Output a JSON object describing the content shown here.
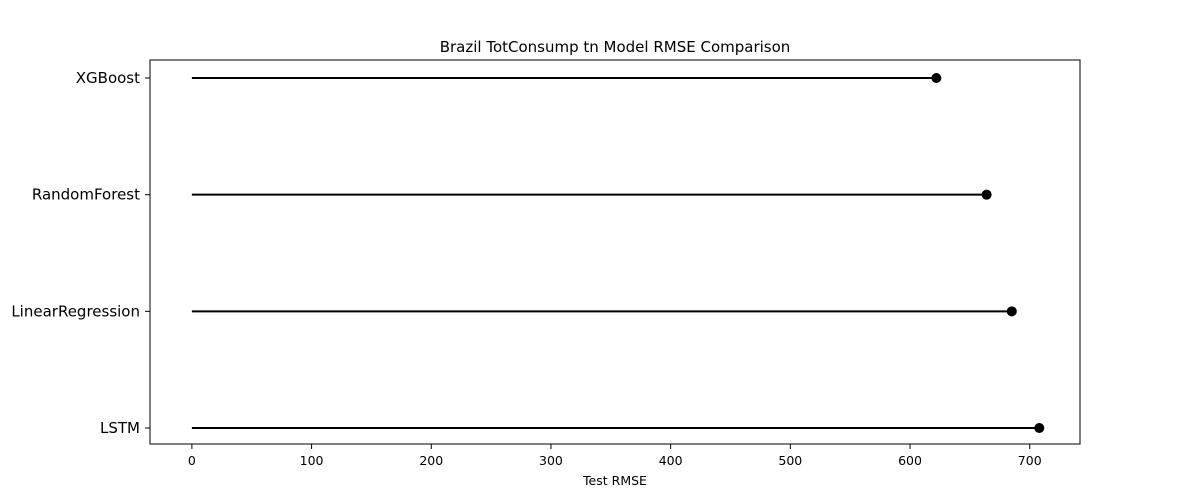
{
  "chart_data": {
    "type": "lollipop",
    "title": "Brazil TotConsump tn Model RMSE Comparison",
    "xlabel": "Test RMSE",
    "ylabel": "",
    "categories": [
      "LSTM",
      "LinearRegression",
      "RandomForest",
      "XGBoost"
    ],
    "values": [
      708,
      685,
      664,
      622
    ],
    "xlim": [
      -35,
      742
    ],
    "xticks": [
      0,
      100,
      200,
      300,
      400,
      500,
      600,
      700
    ],
    "grid": false,
    "colors": {
      "stem": "#000000",
      "marker": "#000000",
      "axes": "#000000"
    }
  }
}
